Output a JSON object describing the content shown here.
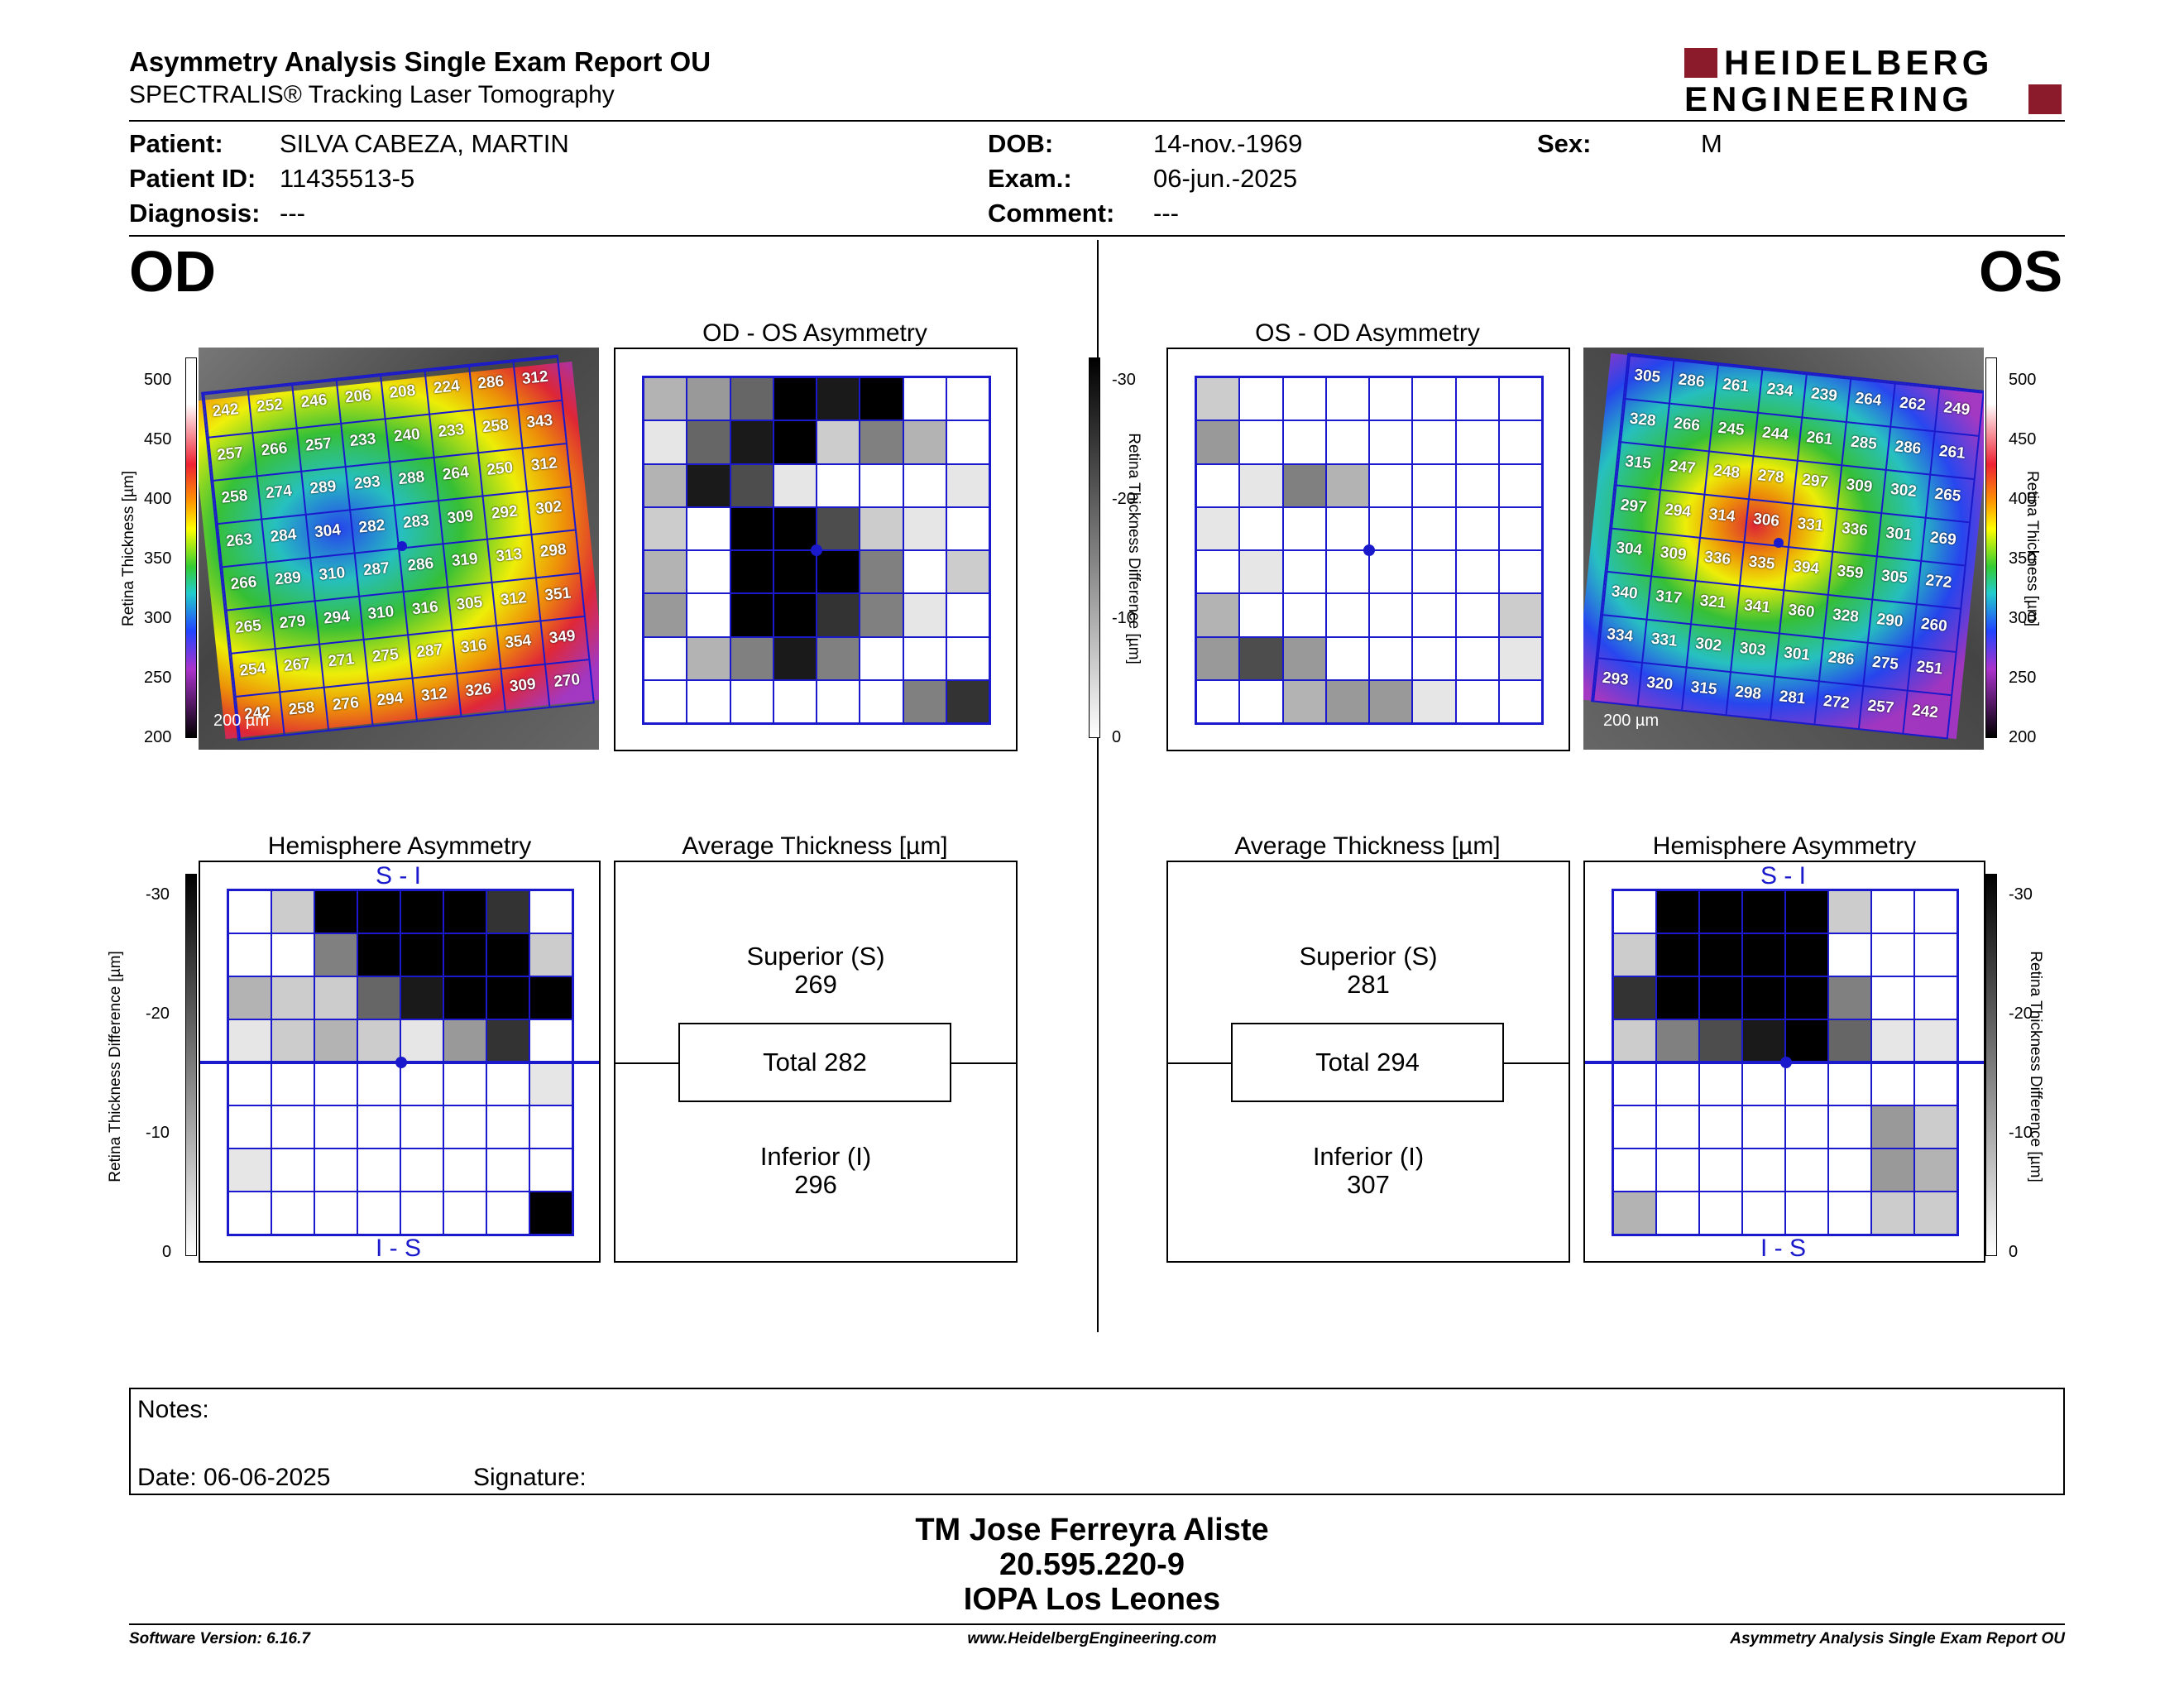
{
  "header": {
    "title": "Asymmetry Analysis Single Exam Report OU",
    "subtitle": "SPECTRALIS® Tracking Laser Tomography",
    "logo_line1": "HEIDELBERG",
    "logo_line2": "ENGINEERING",
    "brand_color": "#8b1a2b"
  },
  "patient": {
    "patient_label": "Patient:",
    "patient_value": "SILVA CABEZA, MARTIN",
    "id_label": "Patient ID:",
    "id_value": "11435513-5",
    "diagnosis_label": "Diagnosis:",
    "diagnosis_value": "---",
    "dob_label": "DOB:",
    "dob_value": "14-nov.-1969",
    "exam_label": "Exam.:",
    "exam_value": "06-jun.-2025",
    "comment_label": "Comment:",
    "comment_value": "---",
    "sex_label": "Sex:",
    "sex_value": "M"
  },
  "od": {
    "eye_label": "OD",
    "asym_title": "OD - OS Asymmetry",
    "hemi_title": "Hemisphere Asymmetry",
    "avg_title": "Average Thickness [µm]",
    "superior_label": "Superior (S)",
    "superior_value": "269",
    "total_label": "Total 282",
    "inferior_label": "Inferior (I)",
    "inferior_value": "296",
    "hemi_top": "S - I",
    "hemi_bottom": "I - S",
    "scale_label": "200 µm",
    "thickness_grid": [
      [
        242,
        252,
        246,
        206,
        208,
        224,
        286,
        312
      ],
      [
        257,
        266,
        257,
        233,
        240,
        233,
        258,
        343
      ],
      [
        258,
        274,
        289,
        293,
        288,
        264,
        250,
        312
      ],
      [
        263,
        284,
        304,
        282,
        283,
        309,
        292,
        302
      ],
      [
        266,
        289,
        310,
        287,
        286,
        319,
        313,
        298
      ],
      [
        265,
        279,
        294,
        310,
        316,
        305,
        312,
        351
      ],
      [
        254,
        267,
        271,
        275,
        287,
        316,
        354,
        349
      ],
      [
        242,
        258,
        276,
        294,
        312,
        326,
        309,
        270
      ]
    ],
    "asym_grid": [
      [
        3,
        4,
        6,
        10,
        9,
        10,
        0,
        0
      ],
      [
        1,
        6,
        9,
        10,
        2,
        5,
        3,
        0
      ],
      [
        3,
        9,
        7,
        1,
        0,
        0,
        0,
        1
      ],
      [
        2,
        0,
        10,
        10,
        7,
        2,
        1,
        0
      ],
      [
        3,
        0,
        10,
        10,
        10,
        5,
        0,
        2
      ],
      [
        4,
        0,
        10,
        10,
        8,
        5,
        1,
        0
      ],
      [
        0,
        3,
        5,
        9,
        5,
        0,
        0,
        0
      ],
      [
        0,
        0,
        0,
        0,
        0,
        0,
        5,
        8
      ]
    ],
    "hemi_grid": [
      [
        0,
        2,
        10,
        10,
        10,
        10,
        8,
        0
      ],
      [
        0,
        0,
        5,
        10,
        10,
        10,
        10,
        2
      ],
      [
        3,
        2,
        2,
        6,
        9,
        10,
        10,
        10
      ],
      [
        1,
        2,
        3,
        2,
        1,
        4,
        8,
        0
      ],
      [
        0,
        0,
        0,
        0,
        0,
        0,
        0,
        1
      ],
      [
        0,
        0,
        0,
        0,
        0,
        0,
        0,
        0
      ],
      [
        1,
        0,
        0,
        0,
        0,
        0,
        0,
        0
      ],
      [
        0,
        0,
        0,
        0,
        0,
        0,
        0,
        10
      ]
    ]
  },
  "os": {
    "eye_label": "OS",
    "asym_title": "OS - OD Asymmetry",
    "hemi_title": "Hemisphere Asymmetry",
    "avg_title": "Average Thickness [µm]",
    "superior_label": "Superior (S)",
    "superior_value": "281",
    "total_label": "Total 294",
    "inferior_label": "Inferior (I)",
    "inferior_value": "307",
    "hemi_top": "S - I",
    "hemi_bottom": "I - S",
    "scale_label": "200 µm",
    "thickness_grid": [
      [
        305,
        286,
        261,
        234,
        239,
        264,
        262,
        249
      ],
      [
        328,
        266,
        245,
        244,
        261,
        285,
        286,
        261
      ],
      [
        315,
        247,
        248,
        278,
        297,
        309,
        302,
        265
      ],
      [
        297,
        294,
        314,
        306,
        331,
        336,
        301,
        269
      ],
      [
        304,
        309,
        336,
        335,
        394,
        359,
        305,
        272
      ],
      [
        340,
        317,
        321,
        341,
        360,
        328,
        290,
        260
      ],
      [
        334,
        331,
        302,
        303,
        301,
        286,
        275,
        251
      ],
      [
        293,
        320,
        315,
        298,
        281,
        272,
        257,
        242
      ]
    ],
    "asym_grid": [
      [
        2,
        0,
        0,
        0,
        0,
        0,
        0,
        0
      ],
      [
        4,
        0,
        0,
        0,
        0,
        0,
        0,
        0
      ],
      [
        0,
        1,
        5,
        3,
        0,
        0,
        0,
        0
      ],
      [
        1,
        0,
        0,
        0,
        0,
        0,
        0,
        0
      ],
      [
        0,
        1,
        0,
        0,
        0,
        0,
        0,
        0
      ],
      [
        3,
        0,
        0,
        0,
        0,
        0,
        0,
        2
      ],
      [
        4,
        7,
        4,
        0,
        0,
        0,
        0,
        1
      ],
      [
        0,
        0,
        3,
        4,
        4,
        1,
        0,
        0
      ]
    ],
    "hemi_grid": [
      [
        0,
        10,
        10,
        10,
        10,
        2,
        0,
        0
      ],
      [
        2,
        10,
        10,
        10,
        10,
        0,
        0,
        0
      ],
      [
        8,
        10,
        10,
        10,
        10,
        5,
        0,
        0
      ],
      [
        2,
        5,
        7,
        9,
        10,
        6,
        1,
        1
      ],
      [
        0,
        0,
        0,
        0,
        0,
        0,
        0,
        0
      ],
      [
        0,
        0,
        0,
        0,
        0,
        0,
        4,
        2
      ],
      [
        0,
        0,
        0,
        0,
        0,
        0,
        4,
        3
      ],
      [
        3,
        0,
        0,
        0,
        0,
        0,
        2,
        2
      ]
    ]
  },
  "scales": {
    "thickness_ticks": [
      "500",
      "450",
      "400",
      "350",
      "300",
      "250",
      "200"
    ],
    "thickness_label": "Retina Thickness [µm]",
    "diff_ticks": [
      "-30",
      "-20",
      "-10",
      "0"
    ],
    "diff_label": "Retina Thickness Difference [µm]"
  },
  "notes": {
    "notes_label": "Notes:",
    "date_label": "Date: 06-06-2025",
    "signature_label": "Signature:"
  },
  "signer": {
    "name": "TM Jose Ferreyra Aliste",
    "rut": "20.595.220-9",
    "institution": "IOPA Los Leones"
  },
  "footer": {
    "software": "Software Version: 6.16.7",
    "website": "www.HeidelbergEngineering.com",
    "report": "Asymmetry Analysis Single Exam Report OU"
  }
}
